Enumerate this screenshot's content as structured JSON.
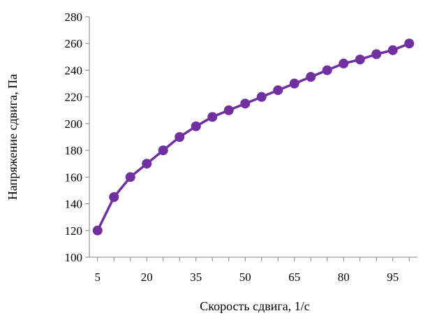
{
  "chart_data": {
    "type": "line",
    "xlabel": "Скорость сдвига, 1/с",
    "ylabel": "Напряжение сдвига, Па",
    "xlim": [
      5,
      100
    ],
    "ylim": [
      100,
      280
    ],
    "x_ticks": [
      5,
      20,
      35,
      50,
      65,
      80,
      95
    ],
    "y_ticks": [
      100,
      120,
      140,
      160,
      180,
      200,
      220,
      240,
      260,
      280
    ],
    "grid": false,
    "legend": "none",
    "series_color": "#7030A0",
    "series": [
      {
        "x": [
          5,
          10,
          15,
          20,
          25,
          30,
          35,
          40,
          45,
          50,
          55,
          60,
          65,
          70,
          75,
          80,
          85,
          90,
          95,
          100
        ],
        "y": [
          120,
          145,
          160,
          170,
          180,
          190,
          198,
          205,
          210,
          215,
          220,
          225,
          230,
          235,
          240,
          245,
          248,
          252,
          255,
          260
        ]
      }
    ]
  }
}
